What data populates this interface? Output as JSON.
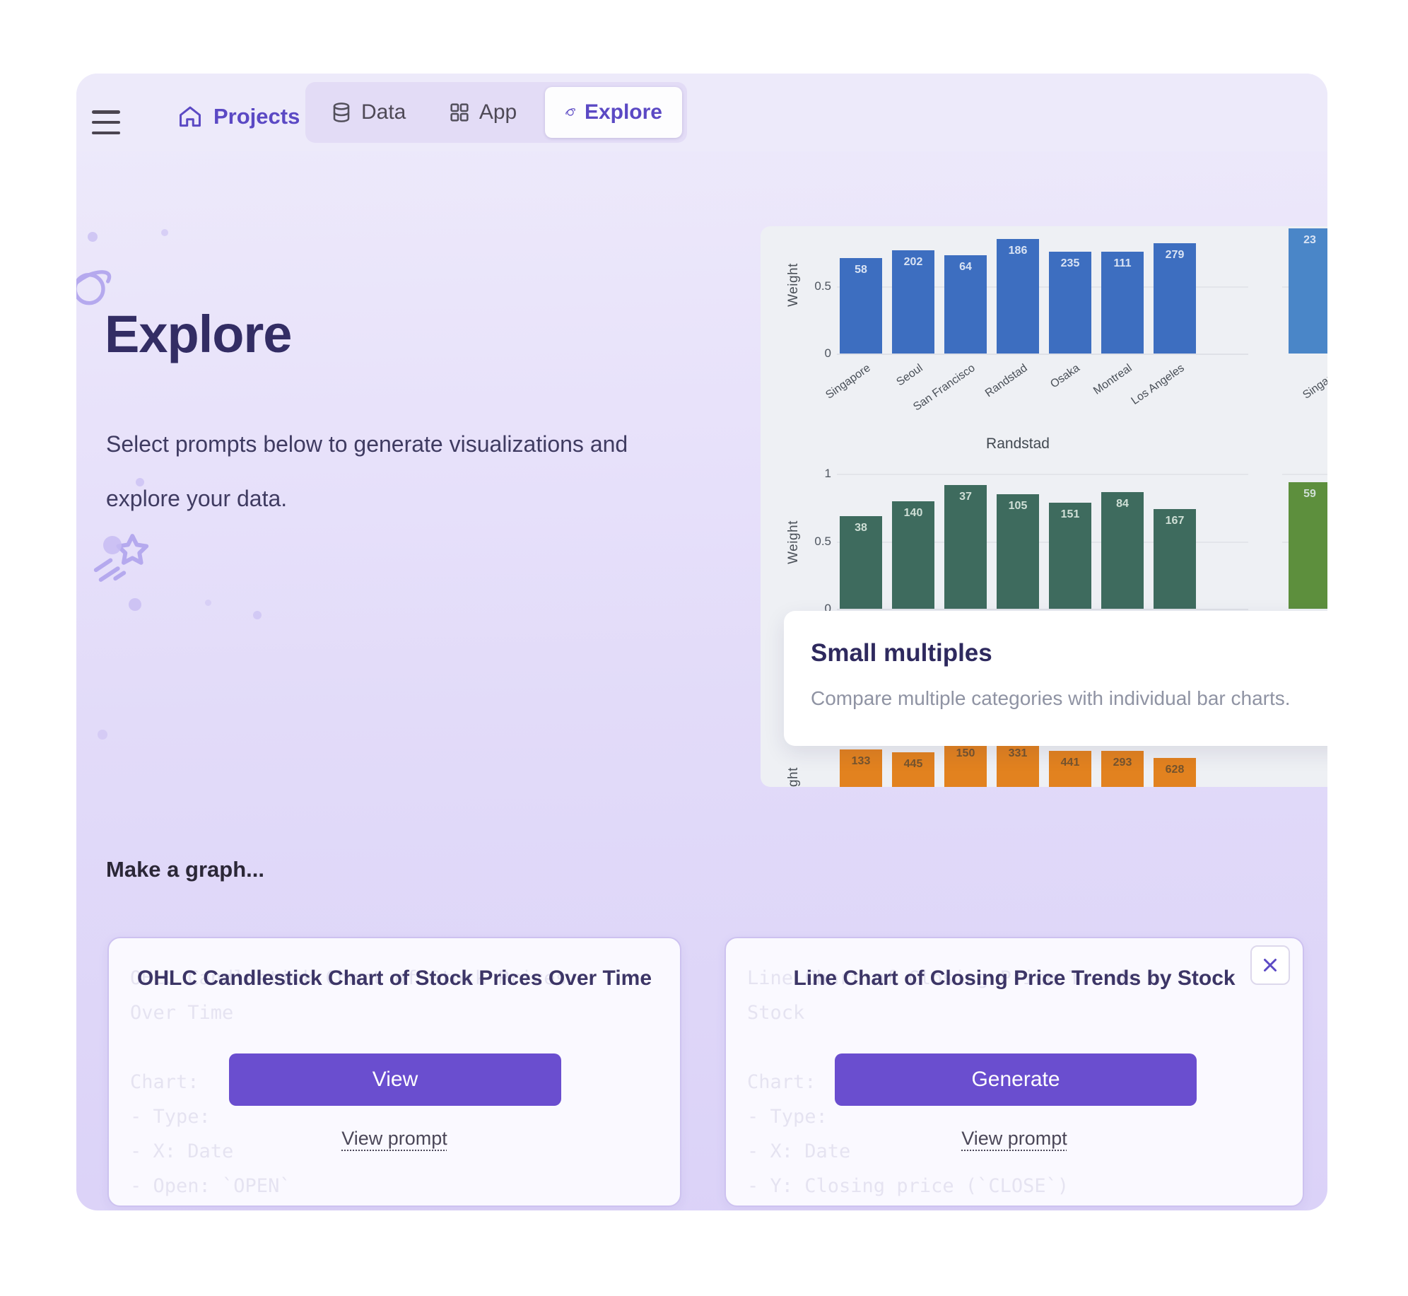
{
  "nav": {
    "projects_label": "Projects",
    "tabs": [
      {
        "label": "Data",
        "icon": "database-icon",
        "active": false
      },
      {
        "label": "App",
        "icon": "grid-icon",
        "active": false
      },
      {
        "label": "Explore",
        "icon": "planet-icon",
        "active": true
      }
    ]
  },
  "hero": {
    "title": "Explore",
    "subtitle": "Select prompts below to generate visualizations and explore your data."
  },
  "preview_overlay": {
    "title": "Small multiples",
    "description": "Compare multiple categories with individual bar charts."
  },
  "make_a_graph_label": "Make a graph...",
  "cards": [
    {
      "title": "OHLC Candlestick Chart of Stock Prices Over Time",
      "button_label": "View",
      "link_label": "View prompt",
      "faded_text": "OHLC Candlestick Chart of Stock Prices\nOver Time\n\nChart:\n- Type:\n- X: Date\n- Open: `OPEN`\n- High: `HIGH`\n- Low: `LOW`"
    },
    {
      "title": "Line Chart of Closing Price Trends by Stock",
      "button_label": "Generate",
      "link_label": "View prompt",
      "close_label": "×",
      "faded_text": "Line Chart of Closing Price Trends by\nStock\n\nChart:\n- Type:\n- X: Date\n- Y: Closing price (`CLOSE`)\n- Color: Stock ticker (`NAME`) or None (via\nDropdown)"
    }
  ],
  "colors": {
    "accent_purple": "#6a4ecf",
    "nav_purple": "#5b49c4",
    "heading": "#332d64",
    "chart_bg": "#eef0f4"
  },
  "chart_data": [
    {
      "type": "bar",
      "title": "",
      "ylabel": "Weight",
      "yticks": [
        [
          "0",
          180
        ],
        [
          "0.5",
          85
        ]
      ],
      "grid_y": [
        85
      ],
      "ylim": [
        0,
        1
      ],
      "categories": [
        "Singapore",
        "Seoul",
        "San Francisco",
        "Randstad",
        "Osaka",
        "Montreal",
        "Los Angeles"
      ],
      "values": [
        0.71,
        0.77,
        0.73,
        0.85,
        0.76,
        0.76,
        0.82
      ],
      "bar_labels": [
        "58",
        "202",
        "64",
        "186",
        "235",
        "111",
        "279"
      ],
      "bar_color": "#3d6ec0",
      "label_color": "#d9e3f4",
      "show_xlabels": true,
      "extra_panel": {
        "category": "Singapore",
        "bar_label": "23",
        "value": 0.93,
        "bar_color": "#4a86c8"
      }
    },
    {
      "type": "bar",
      "title": "Randstad",
      "ylabel": "Weight",
      "yticks": [
        [
          "0",
          541
        ],
        [
          "0.5",
          446
        ],
        [
          "1",
          350
        ]
      ],
      "grid_y": [
        446,
        350
      ],
      "ylim": [
        0,
        1
      ],
      "categories": [
        "Singapore",
        "Seoul",
        "San Francisco",
        "Randstad",
        "Osaka",
        "Montreal",
        "Los Angeles"
      ],
      "values": [
        0.69,
        0.8,
        0.92,
        0.85,
        0.79,
        0.87,
        0.74
      ],
      "bar_labels": [
        "38",
        "140",
        "37",
        "105",
        "151",
        "84",
        "167"
      ],
      "bar_color": "#3e6b5e",
      "label_color": "#cfdfd6",
      "show_xlabels": false,
      "extra_panel": {
        "bar_label": "59",
        "value": 0.94,
        "bar_color": "#5d8f3d"
      }
    },
    {
      "type": "bar",
      "title": "",
      "ylabel": "Weight",
      "partially_hidden": true,
      "yticks": [],
      "grid_y": [],
      "ylim": [
        0,
        1
      ],
      "values": [
        0.93,
        0.91,
        0.99,
        0.99,
        0.92,
        0.92,
        0.87
      ],
      "bar_labels": [
        "133",
        "445",
        "150",
        "331",
        "441",
        "293",
        "628"
      ],
      "bar_color": "#e2821f",
      "label_color": "#75542e",
      "show_xlabels": false
    }
  ]
}
